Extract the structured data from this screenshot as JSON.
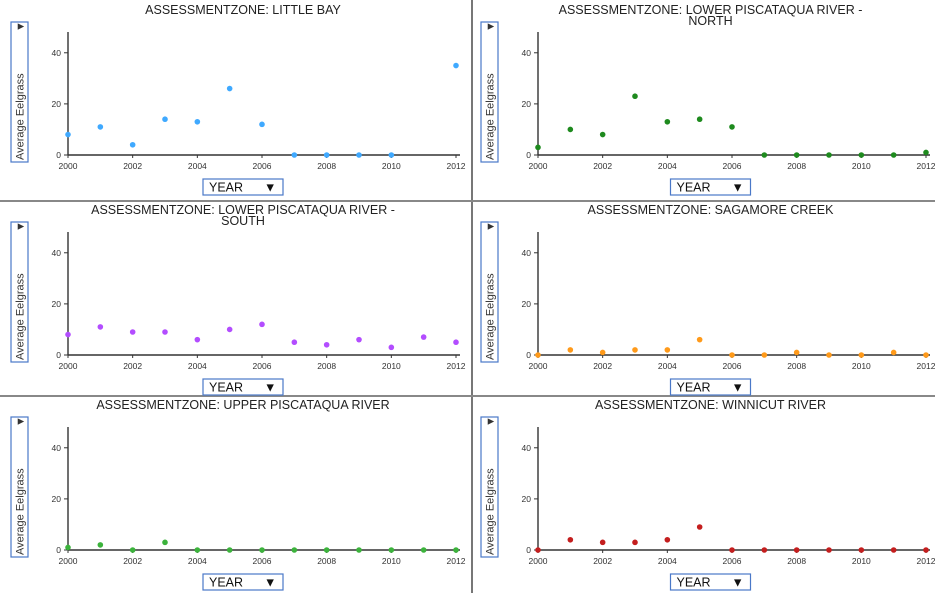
{
  "chart_data": [
    {
      "type": "scatter",
      "title": "ASSESSMENTZONE: LITTLE BAY",
      "xlabel": "YEAR",
      "ylabel": "Average Eelgrass",
      "xlim": [
        2000,
        2012
      ],
      "ylim": [
        0,
        45
      ],
      "xticks": [
        "2000",
        "2002",
        "2004",
        "2006",
        "2008",
        "2010",
        "2012"
      ],
      "yticks": [
        "0",
        "20",
        "40"
      ],
      "color": "#3fa9ff",
      "points": [
        [
          2000,
          8
        ],
        [
          2001,
          11
        ],
        [
          2002,
          4
        ],
        [
          2003,
          14
        ],
        [
          2004,
          13
        ],
        [
          2005,
          26
        ],
        [
          2006,
          12
        ],
        [
          2007,
          0
        ],
        [
          2008,
          0
        ],
        [
          2009,
          0
        ],
        [
          2010,
          0
        ],
        [
          2012,
          35
        ]
      ]
    },
    {
      "type": "scatter",
      "title": "ASSESSMENTZONE: LOWER PISCATAQUA RIVER - NORTH",
      "title_lines": [
        "ASSESSMENTZONE: LOWER PISCATAQUA RIVER -",
        "NORTH"
      ],
      "xlabel": "YEAR",
      "ylabel": "Average Eelgrass",
      "xlim": [
        2000,
        2012
      ],
      "ylim": [
        0,
        45
      ],
      "xticks": [
        "2000",
        "2002",
        "2004",
        "2006",
        "2008",
        "2010",
        "2012"
      ],
      "yticks": [
        "0",
        "20",
        "40"
      ],
      "color": "#1e8a1e",
      "points": [
        [
          2000,
          3
        ],
        [
          2001,
          10
        ],
        [
          2002,
          8
        ],
        [
          2003,
          23
        ],
        [
          2004,
          13
        ],
        [
          2005,
          14
        ],
        [
          2006,
          11
        ],
        [
          2007,
          0
        ],
        [
          2008,
          0
        ],
        [
          2009,
          0
        ],
        [
          2010,
          0
        ],
        [
          2011,
          0
        ],
        [
          2012,
          1
        ]
      ]
    },
    {
      "type": "scatter",
      "title": "ASSESSMENTZONE: LOWER PISCATAQUA RIVER - SOUTH",
      "title_lines": [
        "ASSESSMENTZONE: LOWER PISCATAQUA RIVER -",
        "SOUTH"
      ],
      "xlabel": "YEAR",
      "ylabel": "Average Eelgrass",
      "xlim": [
        2000,
        2012
      ],
      "ylim": [
        0,
        45
      ],
      "xticks": [
        "2000",
        "2002",
        "2004",
        "2006",
        "2008",
        "2010",
        "2012"
      ],
      "yticks": [
        "0",
        "20",
        "40"
      ],
      "color": "#b34dff",
      "points": [
        [
          2000,
          8
        ],
        [
          2001,
          11
        ],
        [
          2002,
          9
        ],
        [
          2003,
          9
        ],
        [
          2004,
          6
        ],
        [
          2005,
          10
        ],
        [
          2006,
          12
        ],
        [
          2007,
          5
        ],
        [
          2008,
          4
        ],
        [
          2009,
          6
        ],
        [
          2010,
          3
        ],
        [
          2011,
          7
        ],
        [
          2012,
          5
        ]
      ]
    },
    {
      "type": "scatter",
      "title": "ASSESSMENTZONE: SAGAMORE CREEK",
      "xlabel": "YEAR",
      "ylabel": "Average Eelgrass",
      "xlim": [
        2000,
        2012
      ],
      "ylim": [
        0,
        45
      ],
      "xticks": [
        "2000",
        "2002",
        "2004",
        "2006",
        "2008",
        "2010",
        "2012"
      ],
      "yticks": [
        "0",
        "20",
        "40"
      ],
      "color": "#ff9a1a",
      "points": [
        [
          2000,
          0
        ],
        [
          2001,
          2
        ],
        [
          2002,
          1
        ],
        [
          2003,
          2
        ],
        [
          2004,
          2
        ],
        [
          2005,
          6
        ],
        [
          2006,
          0
        ],
        [
          2007,
          0
        ],
        [
          2008,
          1
        ],
        [
          2009,
          0
        ],
        [
          2010,
          0
        ],
        [
          2011,
          1
        ],
        [
          2012,
          0
        ]
      ]
    },
    {
      "type": "scatter",
      "title": "ASSESSMENTZONE: UPPER PISCATAQUA RIVER",
      "xlabel": "YEAR",
      "ylabel": "Average Eelgrass",
      "xlim": [
        2000,
        2012
      ],
      "ylim": [
        0,
        45
      ],
      "xticks": [
        "2000",
        "2002",
        "2004",
        "2006",
        "2008",
        "2010",
        "2012"
      ],
      "yticks": [
        "0",
        "20",
        "40"
      ],
      "color": "#3cb33c",
      "points": [
        [
          2000,
          1
        ],
        [
          2001,
          2
        ],
        [
          2002,
          0
        ],
        [
          2003,
          3
        ],
        [
          2004,
          0
        ],
        [
          2005,
          0
        ],
        [
          2006,
          0
        ],
        [
          2007,
          0
        ],
        [
          2008,
          0
        ],
        [
          2009,
          0
        ],
        [
          2010,
          0
        ],
        [
          2011,
          0
        ],
        [
          2012,
          0
        ]
      ]
    },
    {
      "type": "scatter",
      "title": "ASSESSMENTZONE: WINNICUT RIVER",
      "xlabel": "YEAR",
      "ylabel": "Average Eelgrass",
      "xlim": [
        2000,
        2012
      ],
      "ylim": [
        0,
        45
      ],
      "xticks": [
        "2000",
        "2002",
        "2004",
        "2006",
        "2008",
        "2010",
        "2012"
      ],
      "yticks": [
        "0",
        "20",
        "40"
      ],
      "color": "#c41e1e",
      "points": [
        [
          2000,
          0
        ],
        [
          2001,
          4
        ],
        [
          2002,
          3
        ],
        [
          2003,
          3
        ],
        [
          2004,
          4
        ],
        [
          2005,
          9
        ],
        [
          2006,
          0
        ],
        [
          2007,
          0
        ],
        [
          2008,
          0
        ],
        [
          2009,
          0
        ],
        [
          2010,
          0
        ],
        [
          2011,
          0
        ],
        [
          2012,
          0
        ]
      ]
    }
  ]
}
